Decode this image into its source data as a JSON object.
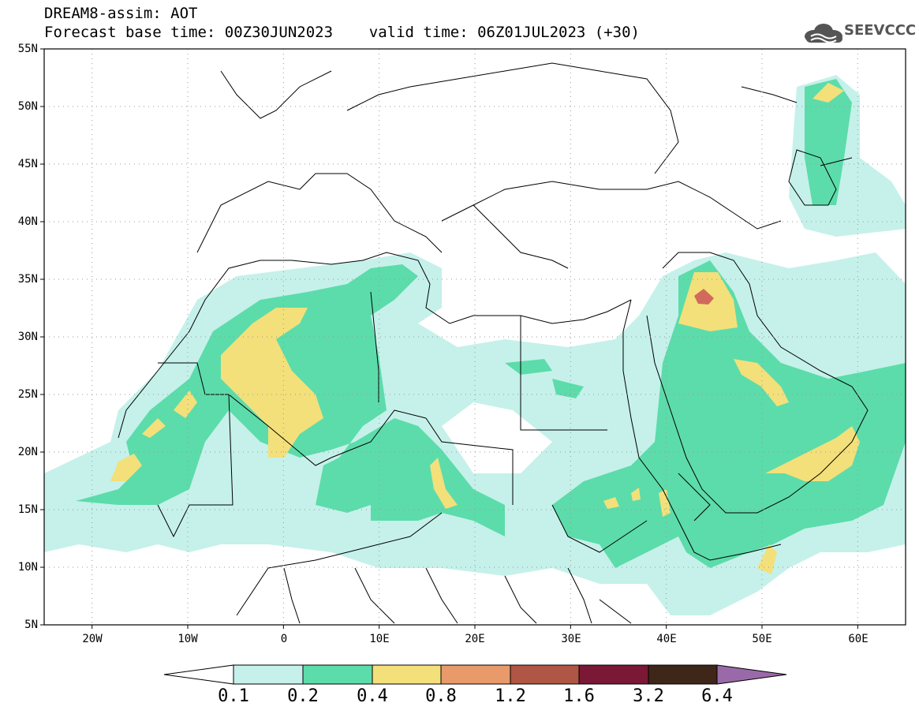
{
  "header": {
    "title_line1": "DREAM8-assim: AOT",
    "title_line2": "Forecast base time: 00Z30JUN2023    valid time: 06Z01JUL2023 (+30)",
    "logo_text": "SEEVCCC"
  },
  "axes": {
    "lat_labels": [
      "55N",
      "50N",
      "45N",
      "40N",
      "35N",
      "30N",
      "25N",
      "20N",
      "15N",
      "10N",
      "5N"
    ],
    "lon_labels": [
      "20W",
      "10W",
      "0",
      "10E",
      "20E",
      "30E",
      "40E",
      "50E",
      "60E"
    ]
  },
  "colorbar": {
    "levels": [
      "0.1",
      "0.2",
      "0.4",
      "0.8",
      "1.2",
      "1.6",
      "3.2",
      "6.4"
    ],
    "colors": [
      "#ffffff",
      "#c5f1ea",
      "#5cdcaa",
      "#f3e07a",
      "#e89a6a",
      "#b05644",
      "#7a1836",
      "#3e2618",
      "#9a6aa8"
    ]
  },
  "map": {
    "extent": {
      "lon": [
        -25,
        65
      ],
      "lat": [
        5,
        55
      ]
    },
    "colors": {
      "aot_0_1": "#c5f1ea",
      "aot_0_2": "#5cdcaa",
      "aot_0_4": "#f3e07a",
      "aot_0_8": "#e89a6a",
      "aot_1_2": "#d16a5c"
    }
  }
}
